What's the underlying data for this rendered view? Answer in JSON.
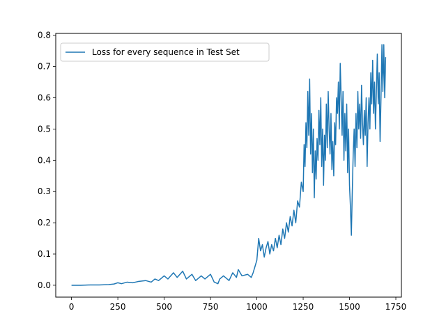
{
  "chart_data": {
    "type": "line",
    "title": "",
    "xlabel": "",
    "ylabel": "",
    "xlim": [
      -85,
      1780
    ],
    "ylim": [
      -0.038,
      0.806
    ],
    "xticks": [
      0,
      250,
      500,
      750,
      1000,
      1250,
      1500,
      1750
    ],
    "yticks": [
      0.0,
      0.1,
      0.2,
      0.3,
      0.4,
      0.5,
      0.6,
      0.7,
      0.8
    ],
    "xtick_labels": [
      "0",
      "250",
      "500",
      "750",
      "1000",
      "1250",
      "1500",
      "1750"
    ],
    "ytick_labels": [
      "0.0",
      "0.1",
      "0.2",
      "0.3",
      "0.4",
      "0.5",
      "0.6",
      "0.7",
      "0.8"
    ],
    "grid": false,
    "legend_position": "top-left",
    "series": [
      {
        "name": "Loss for every sequence in Test Set",
        "color": "#1f77b4",
        "x": [
          0,
          50,
          100,
          150,
          200,
          230,
          250,
          270,
          300,
          330,
          360,
          400,
          430,
          450,
          470,
          500,
          520,
          550,
          570,
          600,
          620,
          650,
          670,
          700,
          720,
          750,
          770,
          790,
          800,
          820,
          850,
          870,
          890,
          900,
          920,
          950,
          970,
          980,
          990,
          1000,
          1010,
          1020,
          1030,
          1040,
          1050,
          1060,
          1070,
          1080,
          1090,
          1100,
          1110,
          1120,
          1130,
          1140,
          1150,
          1160,
          1170,
          1180,
          1190,
          1200,
          1210,
          1220,
          1230,
          1240,
          1250,
          1255,
          1260,
          1265,
          1270,
          1275,
          1280,
          1285,
          1290,
          1295,
          1300,
          1305,
          1310,
          1315,
          1320,
          1325,
          1330,
          1335,
          1340,
          1345,
          1350,
          1355,
          1360,
          1365,
          1370,
          1375,
          1380,
          1385,
          1390,
          1395,
          1400,
          1405,
          1410,
          1415,
          1420,
          1425,
          1430,
          1435,
          1440,
          1445,
          1450,
          1455,
          1460,
          1465,
          1470,
          1475,
          1480,
          1485,
          1490,
          1495,
          1500,
          1505,
          1510,
          1515,
          1520,
          1525,
          1530,
          1535,
          1540,
          1545,
          1550,
          1555,
          1560,
          1565,
          1570,
          1575,
          1580,
          1585,
          1590,
          1595,
          1600,
          1605,
          1610,
          1615,
          1620,
          1625,
          1630,
          1635,
          1640,
          1645,
          1650,
          1655,
          1660,
          1665,
          1670,
          1675,
          1680,
          1685,
          1690,
          1695
        ],
        "values": [
          0.0,
          0.0,
          0.001,
          0.001,
          0.002,
          0.004,
          0.008,
          0.005,
          0.01,
          0.008,
          0.012,
          0.015,
          0.01,
          0.02,
          0.015,
          0.03,
          0.02,
          0.04,
          0.025,
          0.045,
          0.02,
          0.035,
          0.015,
          0.03,
          0.02,
          0.035,
          0.01,
          0.005,
          0.02,
          0.03,
          0.015,
          0.04,
          0.025,
          0.05,
          0.03,
          0.035,
          0.025,
          0.04,
          0.06,
          0.08,
          0.15,
          0.11,
          0.13,
          0.09,
          0.12,
          0.14,
          0.1,
          0.13,
          0.11,
          0.15,
          0.12,
          0.16,
          0.13,
          0.18,
          0.15,
          0.2,
          0.17,
          0.22,
          0.19,
          0.24,
          0.2,
          0.27,
          0.25,
          0.33,
          0.3,
          0.45,
          0.38,
          0.52,
          0.44,
          0.62,
          0.48,
          0.66,
          0.42,
          0.55,
          0.36,
          0.5,
          0.28,
          0.43,
          0.34,
          0.47,
          0.4,
          0.56,
          0.45,
          0.6,
          0.38,
          0.5,
          0.32,
          0.48,
          0.4,
          0.58,
          0.44,
          0.62,
          0.5,
          0.42,
          0.55,
          0.37,
          0.46,
          0.35,
          0.52,
          0.45,
          0.6,
          0.55,
          0.65,
          0.5,
          0.71,
          0.6,
          0.48,
          0.62,
          0.4,
          0.55,
          0.43,
          0.58,
          0.36,
          0.5,
          0.32,
          0.25,
          0.16,
          0.3,
          0.42,
          0.5,
          0.38,
          0.55,
          0.44,
          0.62,
          0.5,
          0.58,
          0.47,
          0.64,
          0.52,
          0.45,
          0.56,
          0.48,
          0.6,
          0.38,
          0.52,
          0.6,
          0.5,
          0.68,
          0.58,
          0.72,
          0.55,
          0.65,
          0.5,
          0.62,
          0.74,
          0.58,
          0.68,
          0.46,
          0.6,
          0.77,
          0.62,
          0.77,
          0.6,
          0.73
        ]
      }
    ]
  }
}
